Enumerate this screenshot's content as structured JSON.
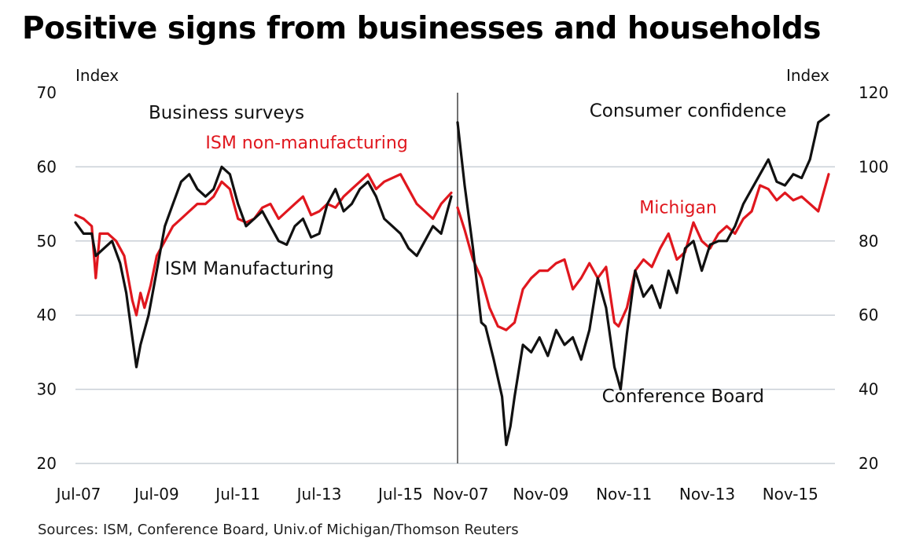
{
  "title": "Positive signs from businesses and households",
  "source": "Sources: ISM, Conference Board, Univ.of Michigan/Thomson Reuters",
  "colors": {
    "red": "#e0171e",
    "black": "#111111",
    "grid": "#c9cfd6",
    "divider": "#444444"
  },
  "chart_data": [
    {
      "type": "line",
      "title": "Business surveys",
      "ylabel": "Index",
      "ylim": [
        20,
        70
      ],
      "yticks": [
        20,
        30,
        40,
        50,
        60,
        70
      ],
      "x_range": [
        2007.5,
        2016.75
      ],
      "x_ticks": [
        {
          "x": 2007.5,
          "label": "Jul-07"
        },
        {
          "x": 2009.5,
          "label": "Jul-09"
        },
        {
          "x": 2011.5,
          "label": "Jul-11"
        },
        {
          "x": 2013.5,
          "label": "Jul-13"
        },
        {
          "x": 2015.5,
          "label": "Jul-15"
        }
      ],
      "grid": true,
      "series": [
        {
          "name": "ISM non-manufacturing",
          "color": "#e0171e",
          "x": [
            2007.5,
            2007.7,
            2007.9,
            2008.0,
            2008.1,
            2008.3,
            2008.5,
            2008.7,
            2008.9,
            2009.0,
            2009.1,
            2009.2,
            2009.35,
            2009.5,
            2009.7,
            2009.9,
            2010.1,
            2010.3,
            2010.5,
            2010.7,
            2010.9,
            2011.0,
            2011.1,
            2011.3,
            2011.5,
            2011.7,
            2011.9,
            2012.1,
            2012.3,
            2012.5,
            2012.7,
            2012.9,
            2013.1,
            2013.3,
            2013.5,
            2013.7,
            2013.9,
            2014.1,
            2014.3,
            2014.5,
            2014.7,
            2014.9,
            2015.1,
            2015.3,
            2015.5,
            2015.7,
            2015.9,
            2016.1,
            2016.3,
            2016.5,
            2016.75
          ],
          "values": [
            53.5,
            53,
            52,
            45,
            51,
            51,
            50,
            48,
            42,
            40,
            43,
            41,
            44,
            48,
            50,
            52,
            53,
            54,
            55,
            55,
            56,
            57,
            58,
            57,
            53,
            52.5,
            53,
            54.5,
            55,
            53,
            54,
            55,
            56,
            53.5,
            54,
            55,
            54.5,
            56,
            57,
            58,
            59,
            57,
            58,
            58.5,
            59,
            57,
            55,
            54,
            53,
            55,
            56.5
          ]
        },
        {
          "name": "ISM Manufacturing",
          "color": "#111111",
          "x": [
            2007.5,
            2007.7,
            2007.9,
            2008.0,
            2008.2,
            2008.4,
            2008.6,
            2008.75,
            2008.9,
            2009.0,
            2009.1,
            2009.3,
            2009.5,
            2009.7,
            2009.9,
            2010.1,
            2010.3,
            2010.5,
            2010.7,
            2010.9,
            2011.1,
            2011.3,
            2011.5,
            2011.7,
            2011.9,
            2012.1,
            2012.3,
            2012.5,
            2012.7,
            2012.9,
            2013.1,
            2013.3,
            2013.5,
            2013.7,
            2013.9,
            2014.1,
            2014.3,
            2014.5,
            2014.7,
            2014.9,
            2015.1,
            2015.3,
            2015.5,
            2015.7,
            2015.9,
            2016.1,
            2016.3,
            2016.5,
            2016.75
          ],
          "values": [
            52.5,
            51,
            51,
            48,
            49,
            50,
            47,
            43,
            37,
            33,
            36,
            40,
            46,
            52,
            55,
            58,
            59,
            57,
            56,
            57,
            60,
            59,
            55,
            52,
            53,
            54,
            52,
            50,
            49.5,
            52,
            53,
            50.5,
            51,
            55,
            57,
            54,
            55,
            57,
            58,
            56,
            53,
            52,
            51,
            49,
            48,
            50,
            52,
            51,
            56
          ]
        }
      ],
      "annotations": [
        {
          "text": "Business surveys",
          "x": 2009.3,
          "y": 66.5
        },
        {
          "text": "ISM non-manufacturing",
          "x": 2010.7,
          "y": 62.5,
          "color": "#e0171e"
        },
        {
          "text": "ISM Manufacturing",
          "x": 2009.7,
          "y": 45.5
        }
      ]
    },
    {
      "type": "line",
      "title": "Consumer confidence",
      "ylabel": "Index",
      "ylim": [
        20,
        120
      ],
      "yticks": [
        20,
        40,
        60,
        80,
        100,
        120
      ],
      "x_range": [
        2007.83,
        2016.75
      ],
      "x_ticks": [
        {
          "x": 2007.83,
          "label": "Nov-07"
        },
        {
          "x": 2009.83,
          "label": "Nov-09"
        },
        {
          "x": 2011.83,
          "label": "Nov-11"
        },
        {
          "x": 2013.83,
          "label": "Nov-13"
        },
        {
          "x": 2015.83,
          "label": "Nov-15"
        }
      ],
      "grid": true,
      "series": [
        {
          "name": "Michigan",
          "color": "#e0171e",
          "x": [
            2007.83,
            2008.0,
            2008.2,
            2008.4,
            2008.6,
            2008.8,
            2009.0,
            2009.2,
            2009.4,
            2009.6,
            2009.8,
            2010.0,
            2010.2,
            2010.4,
            2010.6,
            2010.8,
            2011.0,
            2011.2,
            2011.4,
            2011.6,
            2011.7,
            2011.9,
            2012.1,
            2012.3,
            2012.5,
            2012.7,
            2012.9,
            2013.1,
            2013.3,
            2013.5,
            2013.7,
            2013.9,
            2014.1,
            2014.3,
            2014.5,
            2014.7,
            2014.9,
            2015.1,
            2015.3,
            2015.5,
            2015.7,
            2015.9,
            2016.1,
            2016.3,
            2016.5,
            2016.75
          ],
          "values": [
            89,
            83,
            75,
            70,
            62,
            57,
            56,
            58,
            67,
            70,
            72,
            72,
            74,
            75,
            67,
            70,
            74,
            70,
            73,
            58,
            57,
            62,
            72,
            75,
            73,
            78,
            82,
            75,
            77,
            85,
            80,
            78,
            82,
            84,
            82,
            86,
            88,
            95,
            94,
            91,
            93,
            91,
            92,
            90,
            88,
            98
          ]
        },
        {
          "name": "Conference Board",
          "color": "#111111",
          "x": [
            2007.83,
            2008.0,
            2008.2,
            2008.4,
            2008.5,
            2008.7,
            2008.9,
            2009.0,
            2009.1,
            2009.2,
            2009.4,
            2009.6,
            2009.8,
            2010.0,
            2010.2,
            2010.4,
            2010.6,
            2010.8,
            2011.0,
            2011.2,
            2011.4,
            2011.6,
            2011.75,
            2011.9,
            2012.1,
            2012.3,
            2012.5,
            2012.7,
            2012.9,
            2013.1,
            2013.3,
            2013.5,
            2013.7,
            2013.9,
            2014.1,
            2014.3,
            2014.5,
            2014.7,
            2014.9,
            2015.1,
            2015.3,
            2015.5,
            2015.7,
            2015.9,
            2016.1,
            2016.3,
            2016.5,
            2016.75
          ],
          "values": [
            112,
            95,
            78,
            58,
            57,
            48,
            38,
            25,
            30,
            38,
            52,
            50,
            54,
            49,
            56,
            52,
            54,
            48,
            56,
            70,
            62,
            46,
            40,
            55,
            72,
            65,
            68,
            62,
            72,
            66,
            78,
            80,
            72,
            79,
            80,
            80,
            84,
            90,
            94,
            98,
            102,
            96,
            95,
            98,
            97,
            102,
            112,
            114
          ]
        }
      ],
      "annotations": [
        {
          "text": "Consumer confidence",
          "x": 2011.0,
          "y": 113.5
        },
        {
          "text": "Michigan",
          "x": 2012.2,
          "y": 87.5,
          "color": "#e0171e"
        },
        {
          "text": "Conference Board",
          "x": 2011.3,
          "y": 36.5
        }
      ]
    }
  ]
}
